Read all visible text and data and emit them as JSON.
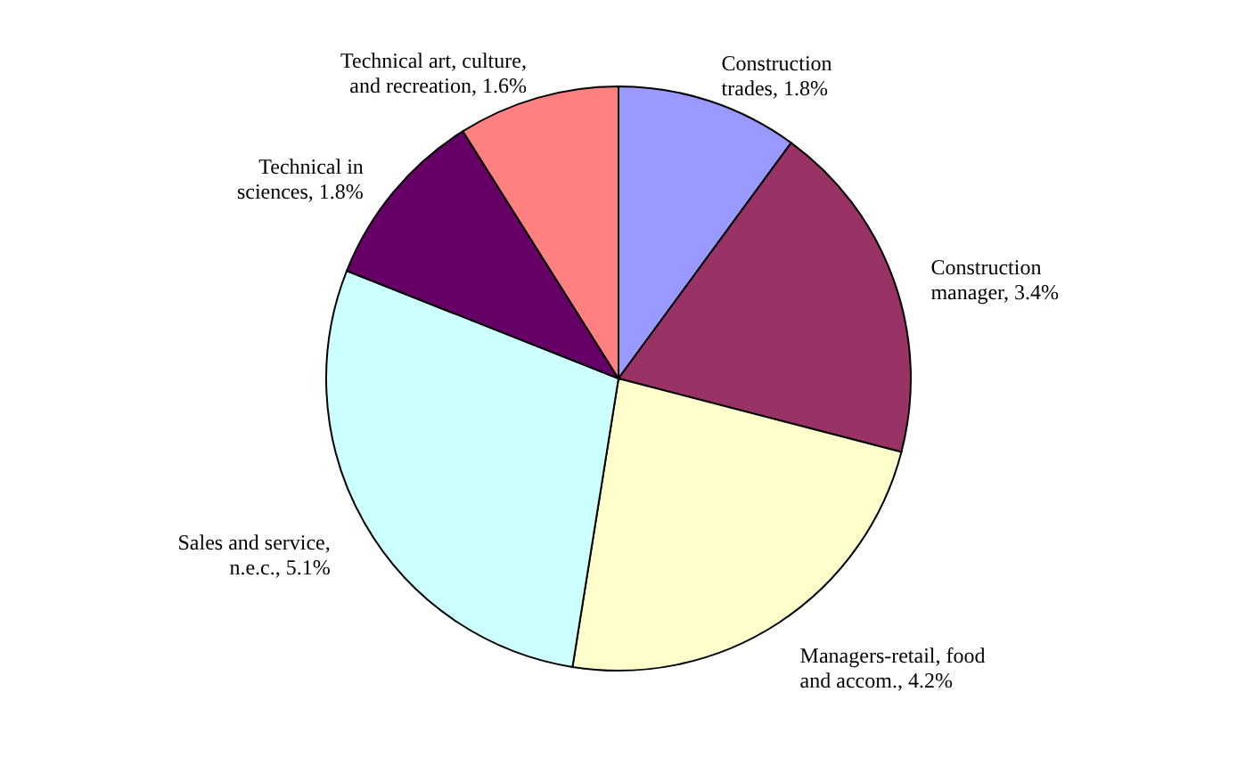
{
  "chart_data": {
    "type": "pie",
    "categories": [
      "Construction trades",
      "Construction manager",
      "Managers-retail, food and accom.",
      "Sales and service, n.e.c.",
      "Technical in sciences",
      "Technical art, culture, and recreation"
    ],
    "values": [
      1.8,
      3.4,
      4.2,
      5.1,
      1.8,
      1.6
    ],
    "value_labels": [
      "1.8%",
      "3.4%",
      "4.2%",
      "5.1%",
      "1.8%",
      "1.6%"
    ],
    "colors": [
      "#9999ff",
      "#993366",
      "#ffffcc",
      "#ccffff",
      "#660066",
      "#ff8080"
    ]
  }
}
